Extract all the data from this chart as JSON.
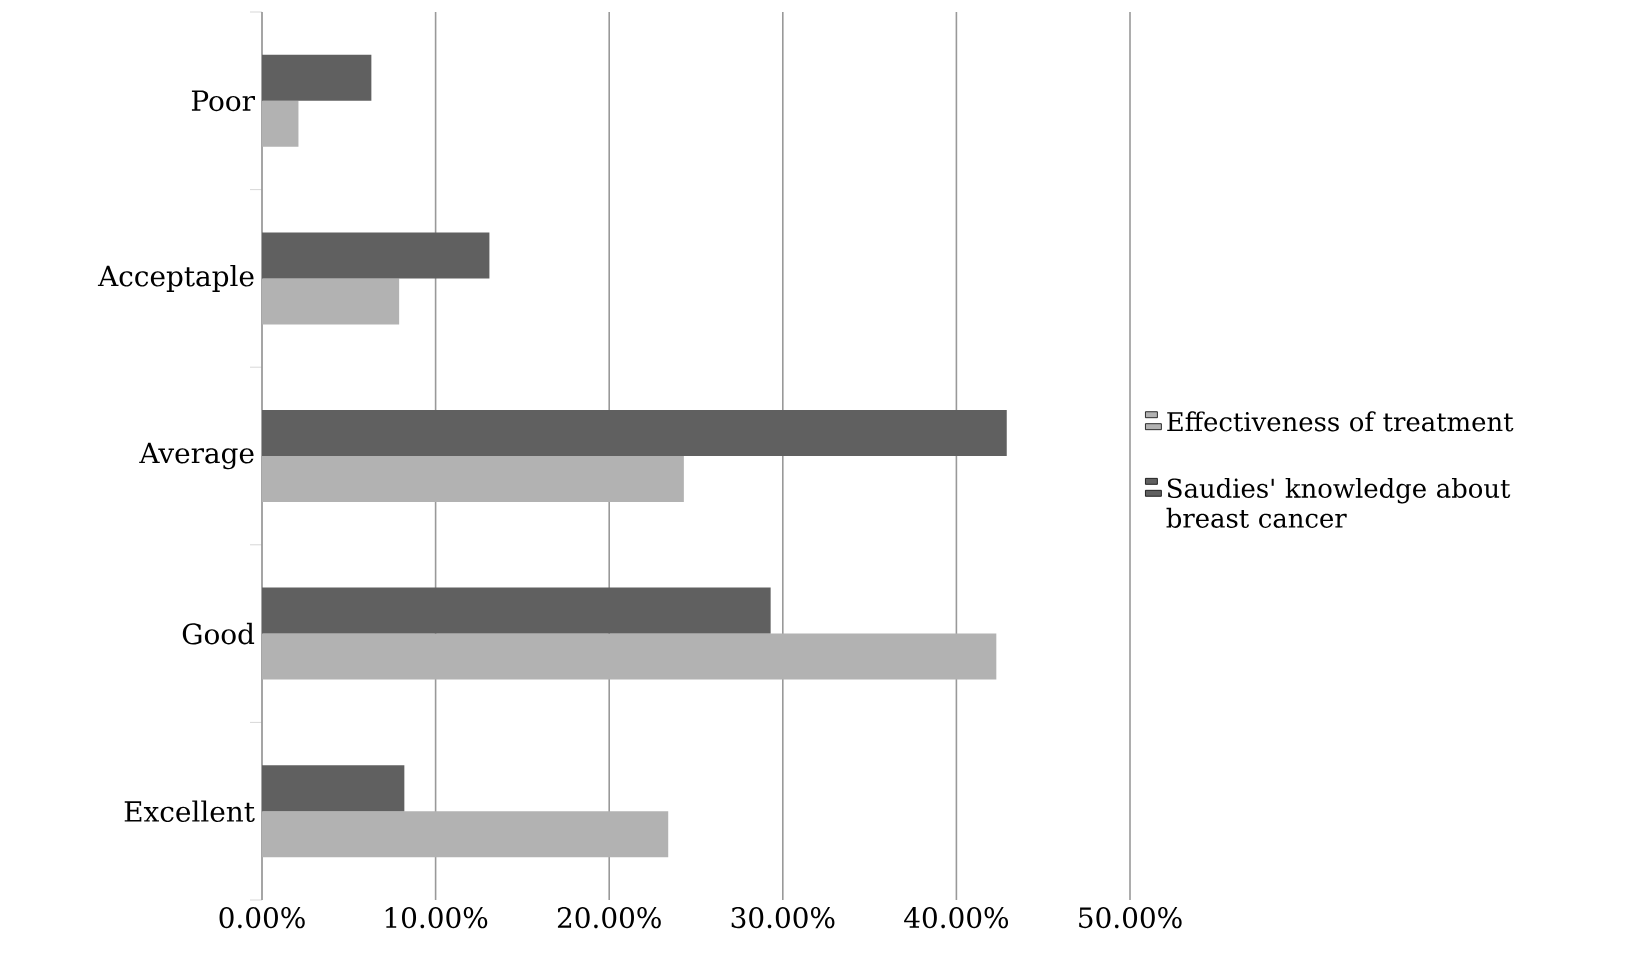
{
  "chart_data": {
    "type": "bar",
    "orientation": "horizontal",
    "categories": [
      "Poor",
      "Acceptaple",
      "Average",
      "Good",
      "Excellent"
    ],
    "series": [
      {
        "name": "Effectiveness of treatment",
        "color": "#b2b2b2",
        "values": [
          2.1,
          7.9,
          24.3,
          42.3,
          23.4
        ]
      },
      {
        "name": "Saudies' knowledge about breast cancer",
        "color": "#606060",
        "values": [
          6.3,
          13.1,
          42.9,
          29.3,
          8.2
        ]
      }
    ],
    "xlim": [
      0,
      50
    ],
    "xticks": [
      {
        "value": 0,
        "label": "0.00%"
      },
      {
        "value": 10,
        "label": "10.00%"
      },
      {
        "value": 20,
        "label": "20.00%"
      },
      {
        "value": 30,
        "label": "30.00%"
      },
      {
        "value": 40,
        "label": "40.00%"
      },
      {
        "value": 50,
        "label": "50.00%"
      }
    ],
    "grid": "x",
    "legend": "right"
  }
}
